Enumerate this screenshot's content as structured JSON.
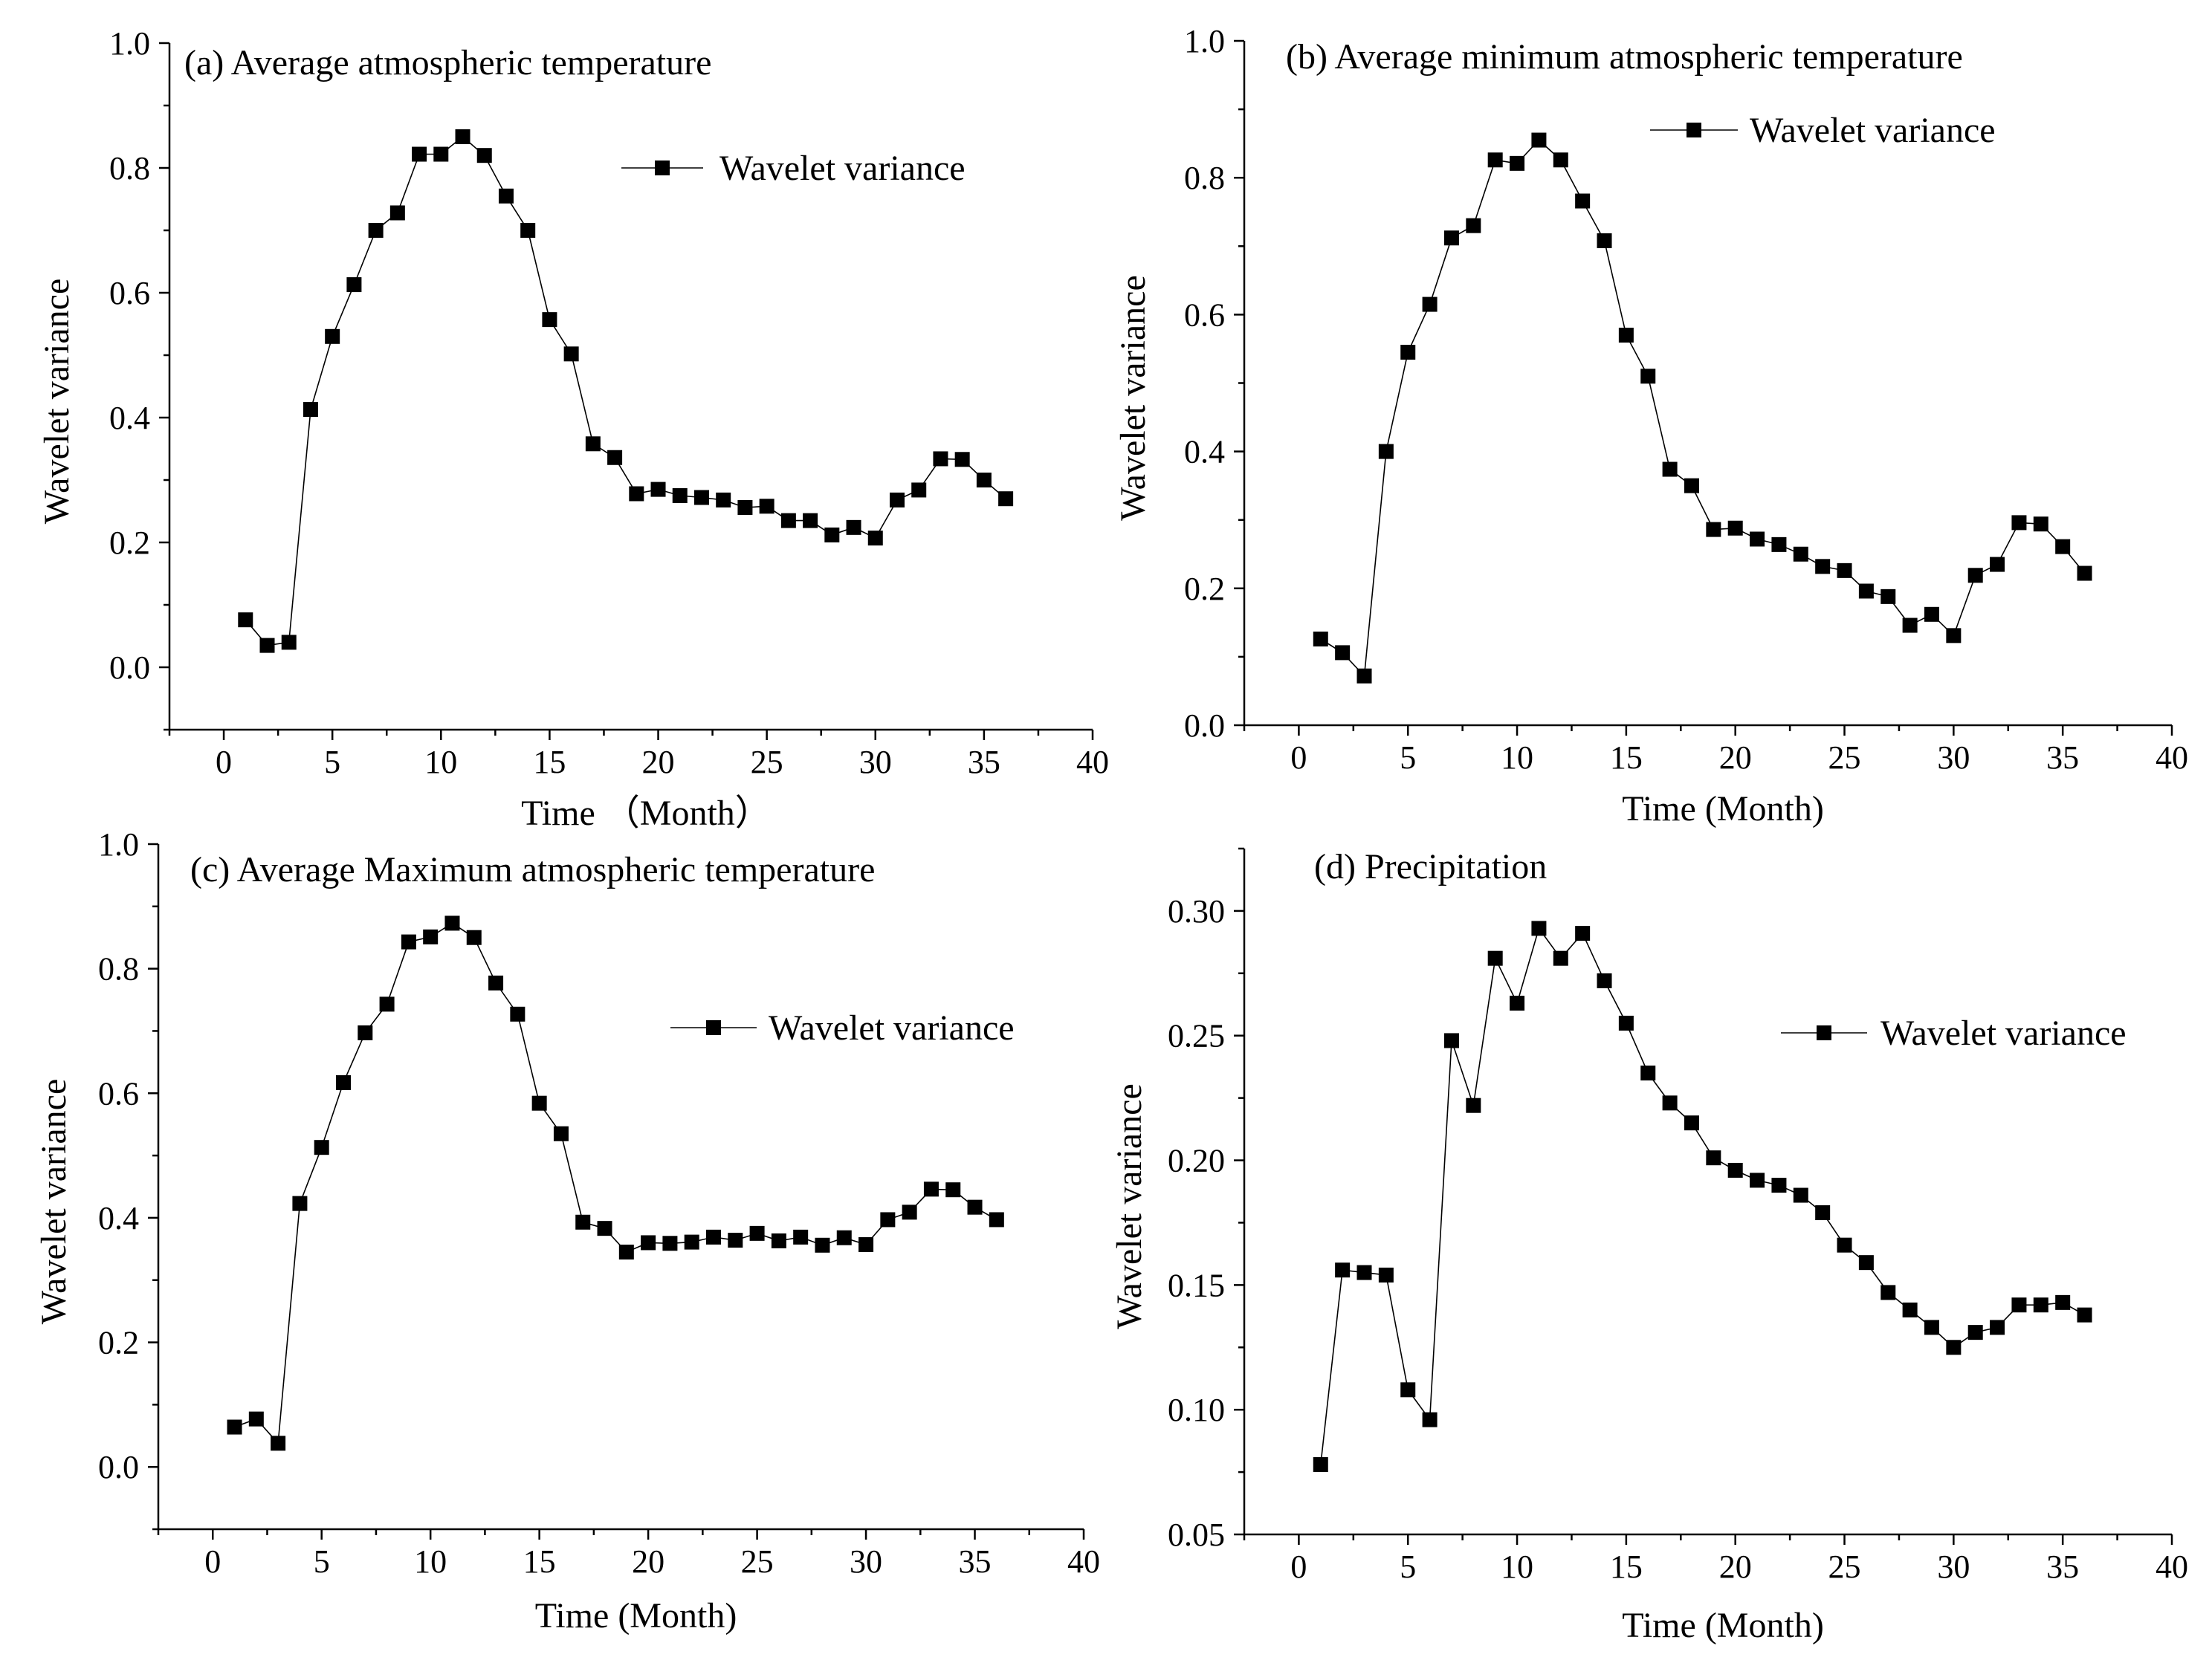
{
  "chart_data": [
    {
      "type": "line",
      "title": "(a) Average atmospheric temperature",
      "xlabel": "Time （Month）",
      "ylabel": "Wavelet variance",
      "xlim": [
        -2.5,
        40
      ],
      "ylim": [
        -0.1,
        1.0
      ],
      "xticks": [
        0,
        5,
        10,
        15,
        20,
        25,
        30,
        35,
        40
      ],
      "xtick_labels": [
        "0",
        "5",
        "10",
        "15",
        "20",
        "25",
        "30",
        "35",
        "40"
      ],
      "yticks": [
        0.0,
        0.2,
        0.4,
        0.6,
        0.8,
        1.0
      ],
      "ytick_labels": [
        "0.0",
        "0.2",
        "0.4",
        "0.6",
        "0.8",
        "1.0"
      ],
      "legend": "top-right",
      "series": [
        {
          "name": "Wavelet variance",
          "x": [
            1,
            2,
            3,
            4,
            5,
            6,
            7,
            8,
            9,
            10,
            11,
            12,
            13,
            14,
            15,
            16,
            17,
            18,
            19,
            20,
            21,
            22,
            23,
            24,
            25,
            26,
            27,
            28,
            29,
            30,
            31,
            32,
            33,
            34,
            35,
            36
          ],
          "values": [
            0.076,
            0.035,
            0.04,
            0.413,
            0.53,
            0.613,
            0.7,
            0.728,
            0.822,
            0.822,
            0.85,
            0.82,
            0.755,
            0.7,
            0.557,
            0.502,
            0.358,
            0.336,
            0.278,
            0.285,
            0.275,
            0.272,
            0.268,
            0.256,
            0.258,
            0.235,
            0.235,
            0.212,
            0.224,
            0.207,
            0.268,
            0.284,
            0.334,
            0.333,
            0.3,
            0.27
          ]
        }
      ]
    },
    {
      "type": "line",
      "title": "(b) Average minimum atmospheric temperature",
      "xlabel": "Time (Month)",
      "ylabel": "Wavelet variance",
      "xlim": [
        -2.5,
        40
      ],
      "ylim": [
        0.0,
        1.0
      ],
      "xticks": [
        0,
        5,
        10,
        15,
        20,
        25,
        30,
        35,
        40
      ],
      "xtick_labels": [
        "0",
        "5",
        "10",
        "15",
        "20",
        "25",
        "30",
        "35",
        "40"
      ],
      "yticks": [
        0.0,
        0.2,
        0.4,
        0.6,
        0.8,
        1.0
      ],
      "ytick_labels": [
        "0.0",
        "0.2",
        "0.4",
        "0.6",
        "0.8",
        "1.0"
      ],
      "legend": "top-right",
      "series": [
        {
          "name": "Wavelet variance",
          "x": [
            1,
            2,
            3,
            4,
            5,
            6,
            7,
            8,
            9,
            10,
            11,
            12,
            13,
            14,
            15,
            16,
            17,
            18,
            19,
            20,
            21,
            22,
            23,
            24,
            25,
            26,
            27,
            28,
            29,
            30,
            31,
            32,
            33,
            34,
            35,
            36
          ],
          "values": [
            0.126,
            0.106,
            0.072,
            0.4,
            0.545,
            0.615,
            0.712,
            0.73,
            0.826,
            0.821,
            0.855,
            0.826,
            0.766,
            0.708,
            0.57,
            0.51,
            0.374,
            0.35,
            0.286,
            0.288,
            0.272,
            0.264,
            0.25,
            0.232,
            0.226,
            0.196,
            0.188,
            0.146,
            0.162,
            0.131,
            0.219,
            0.235,
            0.296,
            0.294,
            0.261,
            0.222
          ]
        }
      ]
    },
    {
      "type": "line",
      "title": "(c) Average Maximum atmospheric temperature",
      "xlabel": "Time (Month)",
      "ylabel": "Wavelet variance",
      "xlim": [
        -2.5,
        40
      ],
      "ylim": [
        -0.1,
        1.0
      ],
      "xticks": [
        0,
        5,
        10,
        15,
        20,
        25,
        30,
        35,
        40
      ],
      "xtick_labels": [
        "0",
        "5",
        "10",
        "15",
        "20",
        "25",
        "30",
        "35",
        "40"
      ],
      "yticks": [
        0.0,
        0.2,
        0.4,
        0.6,
        0.8,
        1.0
      ],
      "ytick_labels": [
        "0.0",
        "0.2",
        "0.4",
        "0.6",
        "0.8",
        "1.0"
      ],
      "legend": "center-right",
      "series": [
        {
          "name": "Wavelet variance",
          "x": [
            1,
            2,
            3,
            4,
            5,
            6,
            7,
            8,
            9,
            10,
            11,
            12,
            13,
            14,
            15,
            16,
            17,
            18,
            19,
            20,
            21,
            22,
            23,
            24,
            25,
            26,
            27,
            28,
            29,
            30,
            31,
            32,
            33,
            34,
            35,
            36
          ],
          "values": [
            0.064,
            0.077,
            0.038,
            0.423,
            0.513,
            0.617,
            0.697,
            0.743,
            0.843,
            0.851,
            0.873,
            0.85,
            0.777,
            0.727,
            0.584,
            0.535,
            0.393,
            0.383,
            0.345,
            0.36,
            0.359,
            0.361,
            0.369,
            0.364,
            0.375,
            0.363,
            0.369,
            0.356,
            0.368,
            0.357,
            0.397,
            0.409,
            0.446,
            0.445,
            0.417,
            0.397
          ]
        }
      ]
    },
    {
      "type": "line",
      "title": "(d) Precipitation",
      "xlabel": "Time (Month)",
      "ylabel": "Wavelet variance",
      "xlim": [
        -2.5,
        40
      ],
      "ylim": [
        0.05,
        0.325
      ],
      "xticks": [
        0,
        5,
        10,
        15,
        20,
        25,
        30,
        35,
        40
      ],
      "xtick_labels": [
        "0",
        "5",
        "10",
        "15",
        "20",
        "25",
        "30",
        "35",
        "40"
      ],
      "yticks": [
        0.05,
        0.1,
        0.15,
        0.2,
        0.25,
        0.3
      ],
      "ytick_labels": [
        "0.05",
        "0.10",
        "0.15",
        "0.20",
        "0.25",
        "0.30"
      ],
      "legend": "center-right",
      "series": [
        {
          "name": "Wavelet variance",
          "x": [
            1,
            2,
            3,
            4,
            5,
            6,
            7,
            8,
            9,
            10,
            11,
            12,
            13,
            14,
            15,
            16,
            17,
            18,
            19,
            20,
            21,
            22,
            23,
            24,
            25,
            26,
            27,
            28,
            29,
            30,
            31,
            32,
            33,
            34,
            35,
            36
          ],
          "values": [
            0.078,
            0.156,
            0.155,
            0.154,
            0.108,
            0.096,
            0.248,
            0.222,
            0.281,
            0.263,
            0.293,
            0.281,
            0.291,
            0.272,
            0.255,
            0.235,
            0.223,
            0.215,
            0.201,
            0.196,
            0.192,
            0.19,
            0.186,
            0.179,
            0.166,
            0.159,
            0.147,
            0.14,
            0.133,
            0.125,
            0.131,
            0.133,
            0.142,
            0.142,
            0.143,
            0.138
          ]
        }
      ]
    }
  ]
}
